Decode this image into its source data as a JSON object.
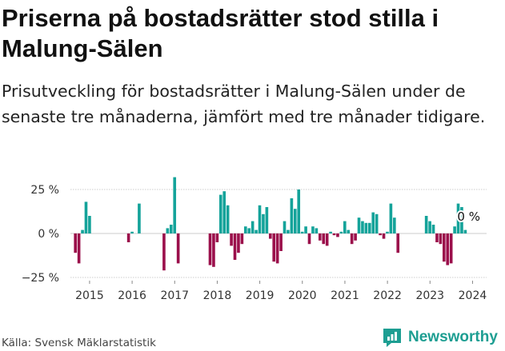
{
  "header": {
    "title": "Priserna på bostadsrätter stod stilla i Malung-Sälen",
    "subtitle": "Prisutveckling för bostadsrätter i Malung-Sälen under de senaste tre månaderna, jämfört med tre månader tidigare."
  },
  "footer": {
    "source": "Källa: Svensk Mäklarstatistik",
    "brand": "Newsworthy"
  },
  "colors": {
    "positive": "#14a39a",
    "negative": "#9b0f4b",
    "grid": "#cccccc",
    "brand": "#1d9e92"
  },
  "chart_data": {
    "type": "bar",
    "title": "Priserna på bostadsrätter stod stilla i Malung-Sälen",
    "xlabel": "",
    "ylabel": "",
    "ylim": [
      -25,
      33
    ],
    "yticks": [
      25,
      0,
      -25
    ],
    "ytick_labels": [
      "25 %",
      "0 %",
      "−25 %"
    ],
    "xticks": [
      2015,
      2016,
      2017,
      2018,
      2019,
      2020,
      2021,
      2022,
      2023,
      2024
    ],
    "xtick_labels": [
      "2015",
      "2016",
      "2017",
      "2018",
      "2019",
      "2020",
      "2021",
      "2022",
      "2023",
      "2024"
    ],
    "x_start": 2014.5,
    "x_step": 0.0833,
    "unit": "%",
    "grid": true,
    "annotation": {
      "label": "0 %",
      "value": 0
    },
    "values": [
      null,
      null,
      -11,
      -17,
      2,
      18,
      10,
      null,
      null,
      null,
      null,
      null,
      null,
      null,
      null,
      null,
      null,
      -5,
      1,
      null,
      17,
      null,
      null,
      null,
      null,
      null,
      null,
      -21,
      3,
      5,
      32,
      -17,
      null,
      null,
      null,
      null,
      null,
      null,
      null,
      null,
      -18,
      -19,
      -5,
      22,
      24,
      16,
      -7,
      -15,
      -11,
      -6,
      4,
      3,
      7,
      2,
      16,
      11,
      15,
      -3,
      -16,
      -17,
      -10,
      7,
      2,
      20,
      14,
      25,
      1,
      4,
      -6,
      4,
      3,
      -4,
      -6,
      -7,
      1,
      -1,
      -2,
      1,
      7,
      2,
      -6,
      -4,
      9,
      7,
      6,
      6,
      12,
      11,
      -1,
      -3,
      1,
      17,
      9,
      -11,
      null,
      null,
      null,
      null,
      null,
      null,
      null,
      10,
      7,
      5,
      -5,
      -6,
      -16,
      -18,
      -17,
      4,
      17,
      15,
      2
    ]
  }
}
